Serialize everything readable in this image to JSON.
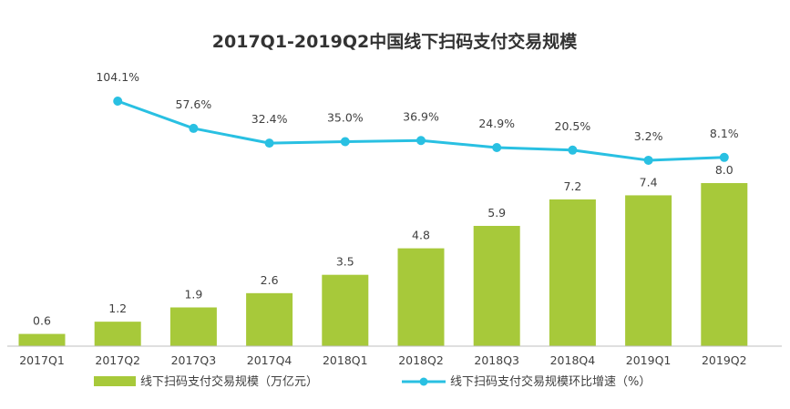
{
  "chart_data": {
    "type": "bar",
    "title": "2017Q1-2019Q2中国线下扫码支付交易规模",
    "categories": [
      "2017Q1",
      "2017Q2",
      "2017Q3",
      "2017Q4",
      "2018Q1",
      "2018Q2",
      "2018Q3",
      "2018Q4",
      "2019Q1",
      "2019Q2"
    ],
    "series": [
      {
        "name": "线下扫码支付交易规模（万亿元）",
        "type": "bar",
        "values": [
          0.6,
          1.2,
          1.9,
          2.6,
          3.5,
          4.8,
          5.9,
          7.2,
          7.4,
          8.0
        ],
        "labels": [
          "0.6",
          "1.2",
          "1.9",
          "2.6",
          "3.5",
          "4.8",
          "5.9",
          "7.2",
          "7.4",
          "8.0"
        ],
        "color": "#a7c93a"
      },
      {
        "name": "线下扫码支付交易规模环比增速（%）",
        "type": "line",
        "values": [
          null,
          104.1,
          57.6,
          32.4,
          35.0,
          36.9,
          24.9,
          20.5,
          3.2,
          8.1
        ],
        "labels": [
          "",
          "104.1%",
          "57.6%",
          "32.4%",
          "35.0%",
          "36.9%",
          "24.9%",
          "20.5%",
          "3.2%",
          "8.1%"
        ],
        "color": "#29c0e2"
      }
    ],
    "xlabel": "",
    "ylabel": "",
    "ylim": [
      0,
      8
    ],
    "y2lim": [
      0,
      104.1
    ],
    "grid": false,
    "legend": "bottom"
  }
}
